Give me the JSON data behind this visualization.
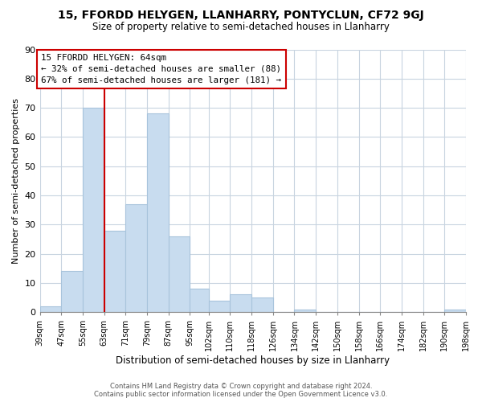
{
  "title": "15, FFORDD HELYGEN, LLANHARRY, PONTYCLUN, CF72 9GJ",
  "subtitle": "Size of property relative to semi-detached houses in Llanharry",
  "xlabel": "Distribution of semi-detached houses by size in Llanharry",
  "ylabel": "Number of semi-detached properties",
  "bar_color": "#c8dcef",
  "bar_edge_color": "#a8c4dc",
  "grid_color": "#c8d4e0",
  "bin_edges": [
    39,
    47,
    55,
    63,
    71,
    79,
    87,
    95,
    102,
    110,
    118,
    126,
    134,
    142,
    150,
    158,
    166,
    174,
    182,
    190,
    198
  ],
  "bin_labels": [
    "39sqm",
    "47sqm",
    "55sqm",
    "63sqm",
    "71sqm",
    "79sqm",
    "87sqm",
    "95sqm",
    "102sqm",
    "110sqm",
    "118sqm",
    "126sqm",
    "134sqm",
    "142sqm",
    "150sqm",
    "158sqm",
    "166sqm",
    "174sqm",
    "182sqm",
    "190sqm",
    "198sqm"
  ],
  "counts": [
    2,
    14,
    70,
    28,
    37,
    68,
    26,
    8,
    4,
    6,
    5,
    0,
    1,
    0,
    0,
    0,
    0,
    0,
    0,
    1
  ],
  "property_line_x": 63,
  "vline_color": "#cc0000",
  "annotation_text_line1": "15 FFORDD HELYGEN: 64sqm",
  "annotation_text_line2": "← 32% of semi-detached houses are smaller (88)",
  "annotation_text_line3": "67% of semi-detached houses are larger (181) →",
  "annotation_box_color": "white",
  "annotation_box_edge": "#cc0000",
  "ylim": [
    0,
    90
  ],
  "yticks": [
    0,
    10,
    20,
    30,
    40,
    50,
    60,
    70,
    80,
    90
  ],
  "footer_line1": "Contains HM Land Registry data © Crown copyright and database right 2024.",
  "footer_line2": "Contains public sector information licensed under the Open Government Licence v3.0.",
  "background_color": "#ffffff"
}
